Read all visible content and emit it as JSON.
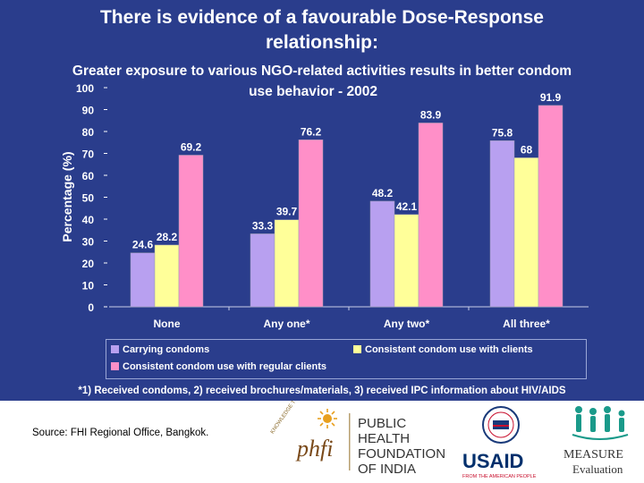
{
  "title_line1": "There is evidence of a favourable Dose-Response",
  "title_line2": "relationship:",
  "subtitle_line1": "Greater exposure to various NGO-related activities results in better condom",
  "subtitle_line2": "use behavior   - 2002",
  "footnote": "*1) Received condoms, 2) received brochures/materials, 3) received IPC information about HIV/AIDS",
  "source": "Source: FHI Regional Office, Bangkok.",
  "logos": {
    "phfi_wordmark": "phfi",
    "phfi_arc": "KNOWLEDGE TO ACTION",
    "phfi_line1": "PUBLIC",
    "phfi_line2": "HEALTH",
    "phfi_line3": "FOUNDATION",
    "phfi_line4": "OF INDIA",
    "usaid_name": "USAID",
    "usaid_tagline": "FROM THE AMERICAN PEOPLE",
    "measure_name": "MEASURE",
    "measure_sub": "Evaluation"
  },
  "colors": {
    "background": "#2a3d8c",
    "series1": "#b8a0f0",
    "series2": "#ffff99",
    "series3": "#ff8fc8"
  },
  "chart_data": {
    "type": "bar",
    "ylabel": "Percentage (%)",
    "ylim": [
      0,
      100
    ],
    "yticks": [
      0,
      10,
      20,
      30,
      40,
      50,
      60,
      70,
      80,
      90,
      100
    ],
    "categories": [
      "None",
      "Any one*",
      "Any two*",
      "All three*"
    ],
    "series": [
      {
        "name": "Carrying condoms",
        "values": [
          24.6,
          33.3,
          48.2,
          75.8
        ],
        "labels": [
          "24.6",
          "33.3",
          "48.2",
          "75.8"
        ]
      },
      {
        "name": "Consistent condom use with clients",
        "values": [
          28.2,
          39.7,
          42.1,
          68
        ],
        "labels": [
          "28.2",
          "39.7",
          "42.1",
          "68"
        ]
      },
      {
        "name": "Consistent condom use with regular clients",
        "values": [
          69.2,
          76.2,
          83.9,
          91.9
        ],
        "labels": [
          "69.2",
          "76.2",
          "83.9",
          "91.9"
        ]
      }
    ]
  }
}
